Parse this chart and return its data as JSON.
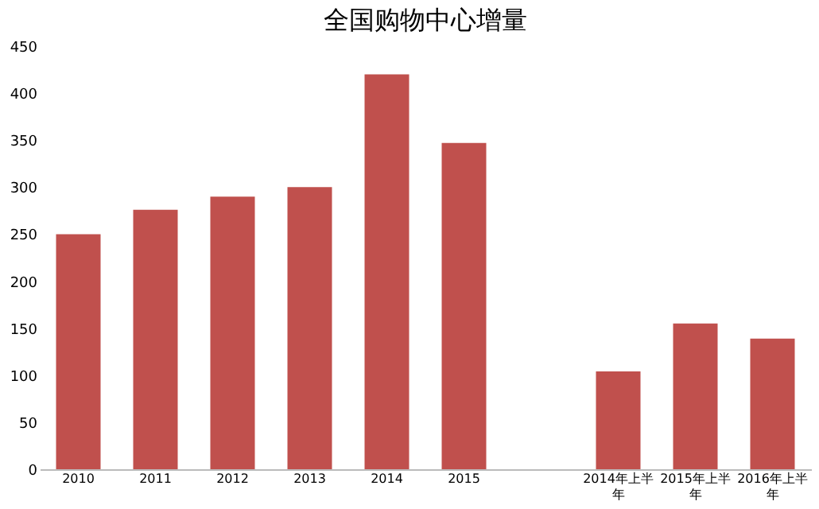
{
  "chart_data": {
    "type": "bar",
    "title": "全国购物中心增量",
    "categories": [
      "2010",
      "2011",
      "2012",
      "2013",
      "2014",
      "2015",
      null,
      "2014年上半年",
      "2015年上半年",
      "2016年上半年"
    ],
    "values": [
      250,
      276,
      290,
      300,
      420,
      347,
      null,
      104,
      155,
      139
    ],
    "color": "#c0504d",
    "ylim": [
      0,
      450
    ],
    "yticks": [
      0,
      50,
      100,
      150,
      200,
      250,
      300,
      350,
      400,
      450
    ],
    "grid": false
  }
}
